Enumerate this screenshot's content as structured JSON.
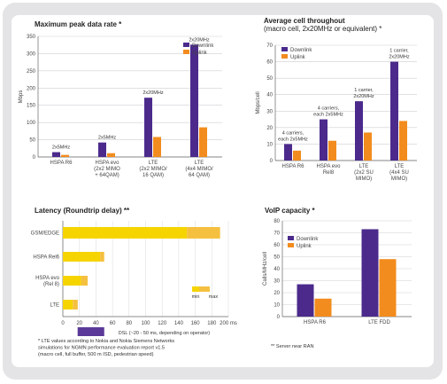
{
  "colors": {
    "downlink": "#4b2a8c",
    "uplink": "#f28c1e",
    "latency_base": "#f5d400",
    "latency_tip": "#f5c040",
    "lte_bar": "#f2c200",
    "dsl_range": "#5a3a98",
    "hatch_bg": "#f2e9a8"
  },
  "chart_data": [
    {
      "type": "bar",
      "title": "Maximum peak data rate *",
      "ylabel": "Mbps",
      "ylim": [
        0,
        350
      ],
      "yticks": [
        0,
        50,
        100,
        150,
        200,
        250,
        300,
        350
      ],
      "legend": "top-right",
      "categories": [
        [
          "HSPA R6"
        ],
        [
          "HSPA evo",
          "(2x2 MIMO",
          "+ 64QAM)"
        ],
        [
          "LTE",
          "(2x2 MIMO/",
          "16 QAM)"
        ],
        [
          "LTE",
          "(4x4 MIMO/",
          "64 QAM)"
        ]
      ],
      "annotations": [
        "2x5MHz",
        "2x5MHz",
        "2x20MHz",
        "2x20MHz"
      ],
      "series": [
        {
          "name": "Downlink",
          "values": [
            14,
            42,
            172,
            326
          ]
        },
        {
          "name": "Uplink",
          "values": [
            6,
            11,
            58,
            86
          ]
        }
      ]
    },
    {
      "type": "bar",
      "title": "Average cell throughout",
      "subtitle": "(macro cell, 2x20MHz or equivalent) *",
      "ylabel": "Mbps/cell",
      "ylim": [
        0,
        70
      ],
      "yticks": [
        0,
        10,
        20,
        30,
        40,
        50,
        60,
        70
      ],
      "legend": "top-left",
      "categories": [
        [
          "HSPA R6"
        ],
        [
          "HSPA evo",
          "Rel8"
        ],
        [
          "LTE",
          "(2x2 SU",
          "MIMO)"
        ],
        [
          "LTE",
          "(4x4 SU",
          "MIMO)"
        ]
      ],
      "annotations": [
        [
          "4 carriers,",
          "each 2x5MHz"
        ],
        [
          "4 carriers,",
          "each 2x5MHz"
        ],
        [
          "1 carrier,",
          "2x20MHz"
        ],
        [
          "1 carrier,",
          "2x20MHz"
        ]
      ],
      "series": [
        {
          "name": "Downlink",
          "values": [
            10,
            25,
            36,
            60
          ]
        },
        {
          "name": "Uplink",
          "values": [
            6,
            12,
            17,
            24
          ]
        }
      ]
    },
    {
      "type": "bar",
      "orientation": "horizontal",
      "title": "Latency (Roundtrip delay) **",
      "xlim": [
        0,
        200
      ],
      "xticks": [
        0,
        20,
        40,
        60,
        80,
        100,
        120,
        140,
        160,
        180,
        200
      ],
      "xunit": "ms",
      "categories": [
        [
          "GSM/EDGE"
        ],
        [
          "HSPA Rel6"
        ],
        [
          "HSPA evo",
          "(Rel 8)"
        ],
        [
          "LTE"
        ]
      ],
      "min_values": [
        150,
        45,
        22,
        12
      ],
      "max_values": [
        190,
        50,
        30,
        18
      ],
      "legend_labels": [
        "min",
        "max"
      ],
      "dsl_range": {
        "from": 20,
        "to": 50,
        "label": "DSL (~20 - 50 ms, depending on operator)"
      }
    },
    {
      "type": "bar",
      "title": "VoIP capacity *",
      "ylabel": "Calls/MHz/cell",
      "ylim": [
        0,
        80
      ],
      "yticks": [
        0,
        10,
        20,
        30,
        40,
        50,
        60,
        70,
        80
      ],
      "legend": "top-left",
      "categories": [
        [
          "HSPA R6"
        ],
        [
          "LTE FDD"
        ]
      ],
      "series": [
        {
          "name": "Downlink",
          "values": [
            27,
            73
          ]
        },
        {
          "name": "Uplink",
          "values": [
            15,
            48
          ]
        }
      ]
    }
  ],
  "footnotes": {
    "latency": [
      "* LTE values according to Nokia and Nokia Siemens Networks",
      "simulations for NGMN performance evaluation report v1.5",
      "(macro cell, full buffer, 500 m ISD, pedestrian speed)"
    ],
    "voip": "** Server near RAN"
  }
}
